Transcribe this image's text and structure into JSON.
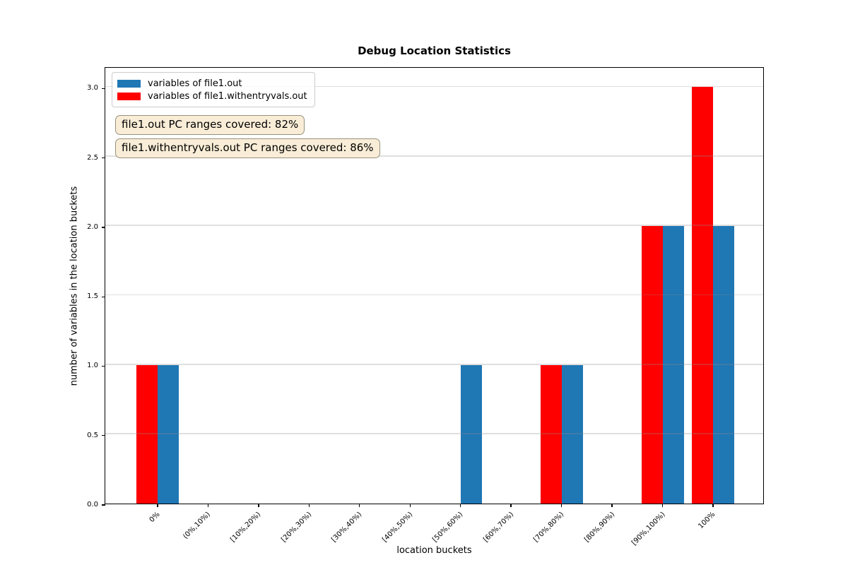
{
  "chart_data": {
    "type": "bar",
    "title": "Debug Location Statistics",
    "xlabel": "location buckets",
    "ylabel": "number of variables in the location buckets",
    "categories": [
      "0%",
      "(0%,10%)",
      "[10%,20%)",
      "[20%,30%)",
      "[30%,40%)",
      "[40%,50%)",
      "[50%,60%)",
      "[60%,70%)",
      "[70%,80%)",
      "[80%,90%)",
      "[90%,100%)",
      "100%"
    ],
    "series": [
      {
        "name": "variables of file1.out",
        "color": "#1f77b4",
        "values": [
          1,
          0,
          0,
          0,
          0,
          0,
          1,
          0,
          1,
          0,
          2,
          2
        ]
      },
      {
        "name": "variables of file1.withentryvals.out",
        "color": "#ff0000",
        "values": [
          1,
          0,
          0,
          0,
          0,
          0,
          0,
          0,
          1,
          0,
          2,
          3
        ]
      }
    ],
    "yticks": [
      0.0,
      0.5,
      1.0,
      1.5,
      2.0,
      2.5,
      3.0
    ],
    "ylim": [
      0,
      3.15
    ],
    "grid": "horizontal-major",
    "legend_position": "upper-left",
    "annotations": [
      "file1.out PC ranges covered: 82%",
      "file1.withentryvals.out PC ranges covered: 86%"
    ]
  },
  "colors": {
    "series_blue": "#1f77b4",
    "series_red": "#ff0000",
    "annotation_background": "#f9edd7",
    "annotation_border": "#97907c",
    "grid": "#e4e4e4"
  }
}
